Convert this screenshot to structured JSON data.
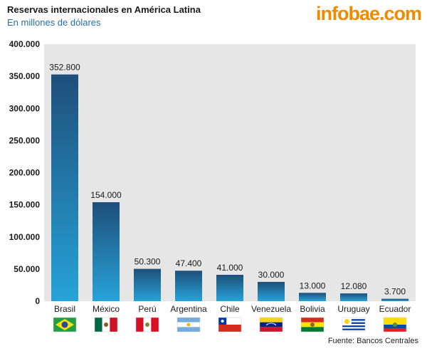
{
  "header": {
    "title": "Reservas internacionales en América Latina",
    "subtitle": "En millones de dólares",
    "logo_text": "infobae.com"
  },
  "footer": {
    "source": "Fuente: Bancos Centrales"
  },
  "colors": {
    "bar_top": "#1e4f7a",
    "bar_bottom": "#27a3d9",
    "plot_bg": "#e6e6e6"
  },
  "chart_data": {
    "type": "bar",
    "categories": [
      "Brasil",
      "México",
      "Perú",
      "Argentina",
      "Chile",
      "Venezuela",
      "Bolivia",
      "Uruguay",
      "Ecuador"
    ],
    "values": [
      352800,
      154000,
      50300,
      47400,
      41000,
      30000,
      13000,
      12080,
      3700
    ],
    "value_labels": [
      "352.800",
      "154.000",
      "50.300",
      "47.400",
      "41.000",
      "30.000",
      "13.000",
      "12.080",
      "3.700"
    ],
    "yticks": [
      0,
      50000,
      100000,
      150000,
      200000,
      250000,
      300000,
      350000,
      400000
    ],
    "ytick_labels": [
      "0",
      "50.000",
      "100.000",
      "150.000",
      "200.000",
      "250.000",
      "300.000",
      "350.000",
      "400.000"
    ],
    "ylim": [
      0,
      400000
    ],
    "grid": false,
    "flags": [
      "brazil-flag",
      "mexico-flag",
      "peru-flag",
      "argentina-flag",
      "chile-flag",
      "venezuela-flag",
      "bolivia-flag",
      "uruguay-flag",
      "ecuador-flag"
    ]
  }
}
